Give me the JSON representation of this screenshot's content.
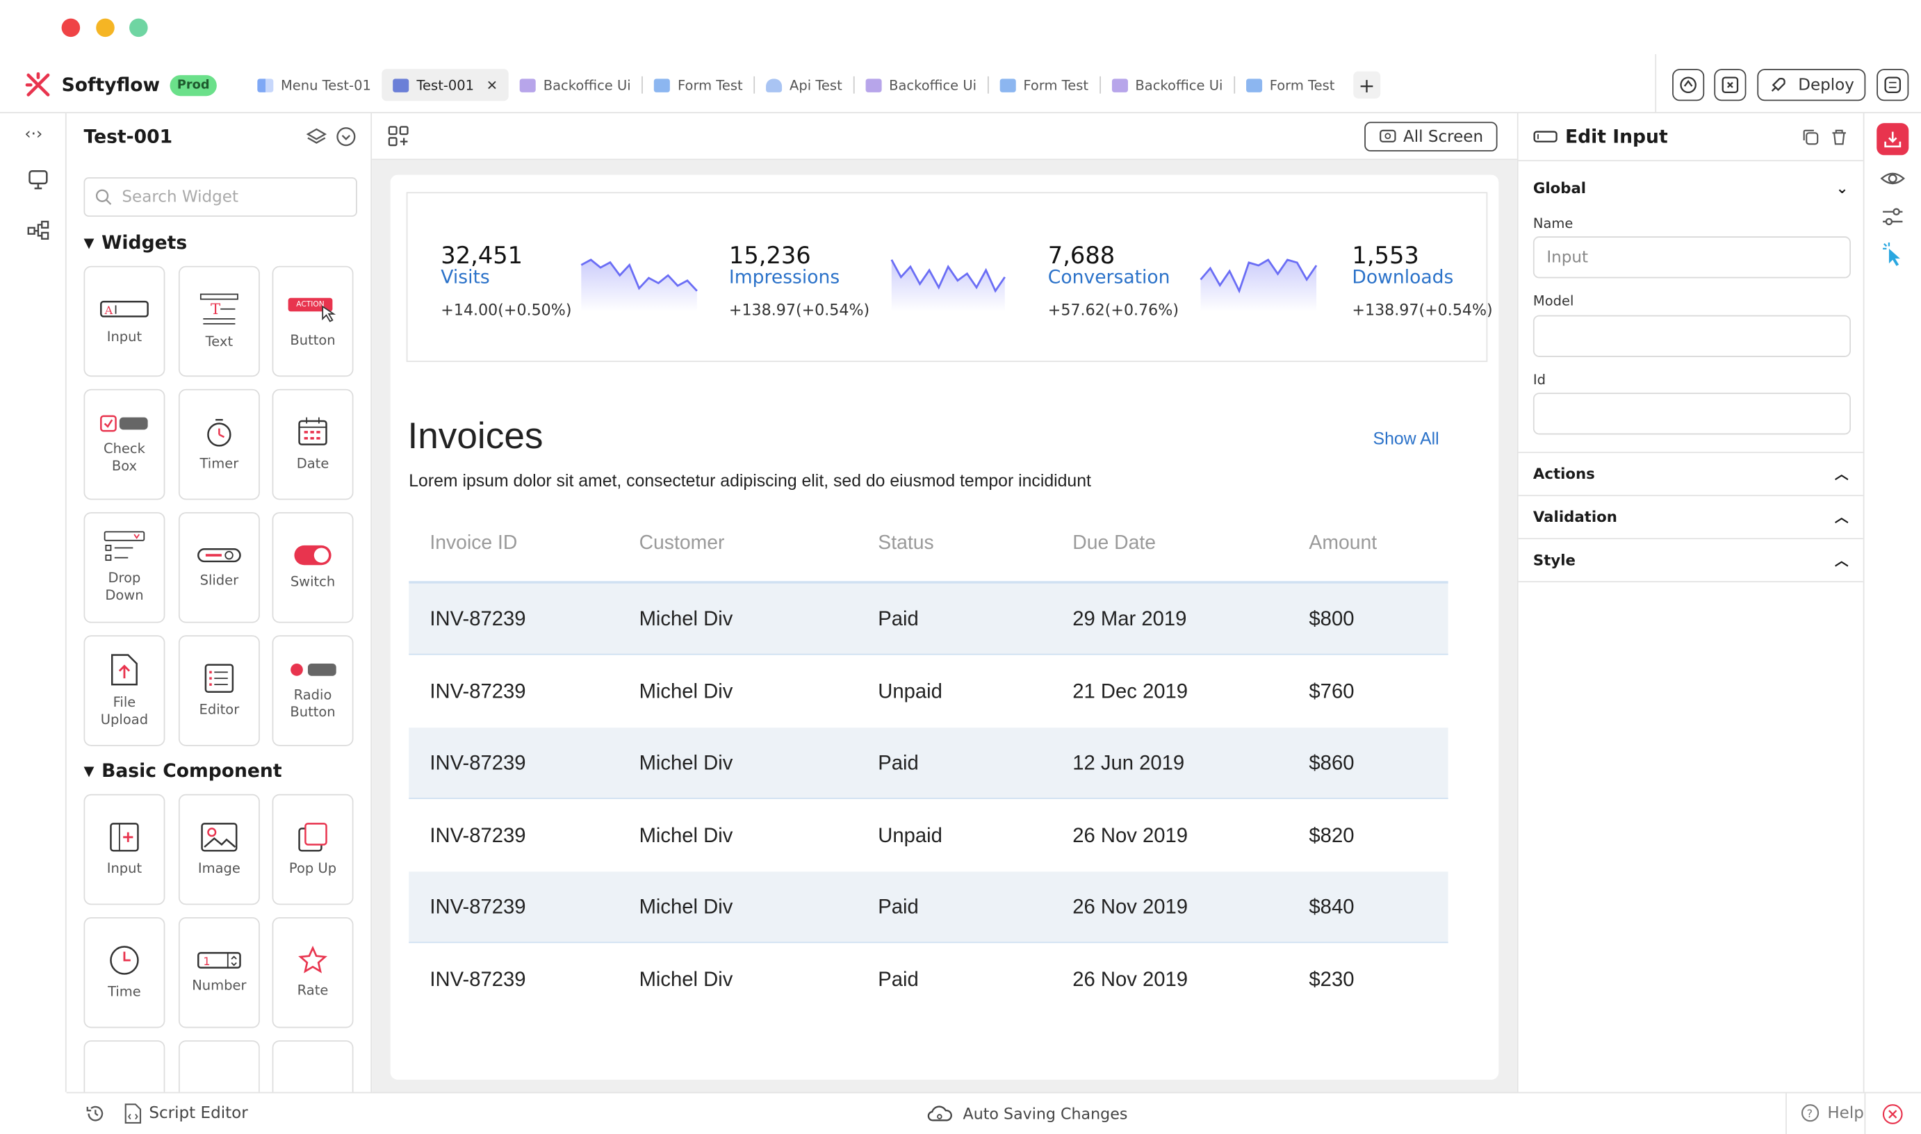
{
  "app": {
    "name": "Softyflow",
    "env_badge": "Prod"
  },
  "colors": {
    "brand": "#e8344e",
    "accent": "#2b72c9",
    "sparkline": "#6b6ef5",
    "paid_row": "#edf2f7"
  },
  "tabs": [
    {
      "label": "Menu Test-01",
      "icon": "menu-icon"
    },
    {
      "label": "Test-001",
      "icon": "ui-icon",
      "active": true
    },
    {
      "label": "Backoffice Ui",
      "icon": "folder-icon"
    },
    {
      "label": "Form Test",
      "icon": "form-icon"
    },
    {
      "label": "Api Test",
      "icon": "api-icon"
    },
    {
      "label": "Backoffice Ui",
      "icon": "folder-icon"
    },
    {
      "label": "Form Test",
      "icon": "form-icon"
    },
    {
      "label": "Backoffice Ui",
      "icon": "folder-icon"
    },
    {
      "label": "Form Test",
      "icon": "form-icon"
    }
  ],
  "header": {
    "deploy_label": "Deploy"
  },
  "widget_panel": {
    "title": "Test-001",
    "search_placeholder": "Search Widget",
    "widgets_section": "Widgets",
    "widgets": [
      "Input",
      "Text",
      "Button",
      "Check Box",
      "Timer",
      "Date",
      "Drop Down",
      "Slider",
      "Switch",
      "File Upload",
      "Editor",
      "Radio Button"
    ],
    "button_tile_badge": "ACTION",
    "basic_section": "Basic Component",
    "basic": [
      "Input",
      "Image",
      "Pop Up",
      "Time",
      "Number",
      "Rate"
    ]
  },
  "canvas": {
    "all_screen_label": "All Screen",
    "stats": [
      {
        "value": "32,451",
        "name": "Visits",
        "change": "+14.00(+0.50%)",
        "spark": [
          12,
          14,
          11,
          13,
          8,
          12,
          3,
          7,
          5,
          8,
          4,
          6,
          2
        ]
      },
      {
        "value": "15,236",
        "name": "Impressions",
        "change": "+138.97(+0.54%)",
        "spark": [
          14,
          9,
          12,
          7,
          11,
          6,
          12,
          8,
          10,
          6,
          11,
          5,
          9
        ]
      },
      {
        "value": "7,688",
        "name": "Conversation",
        "change": "+57.62(+0.76%)",
        "spark": [
          6,
          10,
          4,
          9,
          2,
          12,
          11,
          13,
          8,
          13,
          12,
          6,
          11
        ]
      },
      {
        "value": "1,553",
        "name": "Downloads",
        "change": "+138.97(+0.54%)"
      }
    ],
    "invoices": {
      "title": "Invoices",
      "show_all": "Show All",
      "description": "Lorem ipsum dolor sit amet, consectetur adipiscing elit, sed do eiusmod tempor incididunt",
      "columns": [
        "Invoice ID",
        "Customer",
        "Status",
        "Due Date",
        "Amount"
      ],
      "rows": [
        [
          "INV-87239",
          "Michel Div",
          "Paid",
          "29 Mar 2019",
          "$800"
        ],
        [
          "INV-87239",
          "Michel Div",
          "Unpaid",
          "21 Dec 2019",
          "$760"
        ],
        [
          "INV-87239",
          "Michel Div",
          "Paid",
          "12 Jun 2019",
          "$860"
        ],
        [
          "INV-87239",
          "Michel Div",
          "Unpaid",
          "26 Nov 2019",
          "$820"
        ],
        [
          "INV-87239",
          "Michel Div",
          "Paid",
          "26 Nov 2019",
          "$840"
        ],
        [
          "INV-87239",
          "Michel Div",
          "Paid",
          "26 Nov 2019",
          "$230"
        ]
      ]
    }
  },
  "edit_panel": {
    "title": "Edit Input",
    "global_section": "Global",
    "name_label": "Name",
    "name_value": "Input",
    "model_label": "Model",
    "model_value": "",
    "id_label": "Id",
    "id_value": "",
    "actions_section": "Actions",
    "validation_section": "Validation",
    "style_section": "Style"
  },
  "footer": {
    "script_editor": "Script Editor",
    "status": "Auto Saving Changes",
    "help": "Help"
  }
}
